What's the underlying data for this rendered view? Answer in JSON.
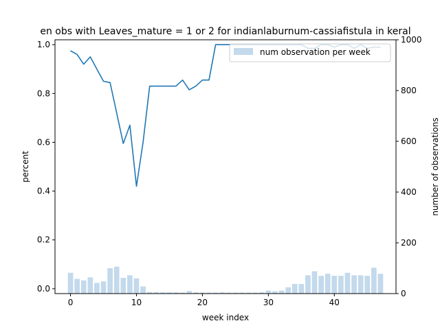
{
  "chart_data": {
    "type": "bar+line",
    "title": "en obs with Leaves_mature = 1 or 2 for indianlaburnum-cassiafistula in keral",
    "xlabel": "week index",
    "ylabel_left": "percent",
    "ylabel_right": "number of observations",
    "xlim": [
      -2.35,
      49.35
    ],
    "ylim_left": [
      -0.02,
      1.02
    ],
    "ylim_right": [
      0,
      1000
    ],
    "x_ticks": [
      0,
      10,
      20,
      30,
      40
    ],
    "y_left_ticks": [
      0.0,
      0.2,
      0.4,
      0.6,
      0.8,
      1.0
    ],
    "y_right_ticks": [
      0,
      200,
      400,
      600,
      800,
      1000
    ],
    "legend": {
      "label": "num observation per week",
      "placement": "upper right"
    },
    "colors": {
      "line": "#1f77b4",
      "bars": "#c3d9ec"
    },
    "weeks": [
      0,
      1,
      2,
      3,
      4,
      5,
      6,
      7,
      8,
      9,
      10,
      11,
      12,
      13,
      14,
      15,
      16,
      17,
      18,
      19,
      20,
      21,
      22,
      23,
      24,
      25,
      26,
      27,
      28,
      29,
      30,
      31,
      32,
      33,
      34,
      35,
      36,
      37,
      38,
      39,
      40,
      41,
      42,
      43,
      44,
      45,
      46,
      47
    ],
    "percent": [
      0.975,
      0.96,
      0.92,
      0.95,
      0.9,
      0.85,
      0.845,
      0.72,
      0.595,
      0.67,
      0.42,
      0.6,
      0.83,
      0.83,
      0.83,
      0.83,
      0.83,
      0.855,
      0.815,
      0.83,
      0.855,
      0.855,
      1.0,
      1.0,
      1.0,
      1.0,
      1.0,
      1.0,
      1.0,
      1.0,
      1.0,
      1.0,
      1.0,
      1.0,
      1.0,
      1.0,
      0.985,
      0.985,
      1.0,
      1.0,
      0.99,
      1.0,
      1.0,
      0.985,
      1.0,
      0.985,
      0.99,
      0.99
    ],
    "num_observations": [
      82,
      58,
      52,
      64,
      42,
      48,
      100,
      106,
      62,
      72,
      60,
      28,
      6,
      6,
      5,
      5,
      5,
      4,
      10,
      5,
      4,
      4,
      4,
      5,
      4,
      4,
      4,
      4,
      4,
      5,
      12,
      9,
      12,
      25,
      38,
      38,
      72,
      88,
      70,
      78,
      70,
      70,
      82,
      72,
      72,
      70,
      102,
      78
    ]
  }
}
